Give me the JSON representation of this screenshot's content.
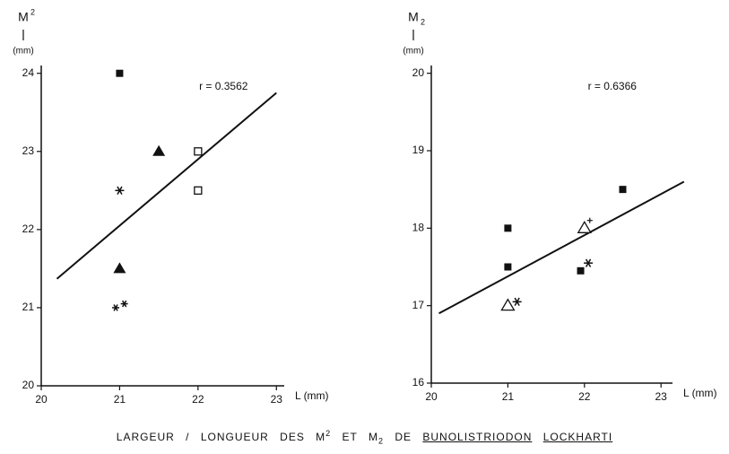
{
  "chart_data": [
    {
      "type": "scatter",
      "ylabel": "M",
      "ylabel_index": "2",
      "index_position": "superscript",
      "yunit": "(mm)",
      "xlabel": "L (mm)",
      "annotation": "r = 0.3562",
      "color": "#111111",
      "xlim": [
        20,
        23.1
      ],
      "ylim": [
        20,
        24.1
      ],
      "xticks": [
        20,
        21,
        22,
        23
      ],
      "yticks": [
        20,
        21,
        22,
        23,
        24
      ],
      "series": [
        {
          "marker": "square-filled",
          "x": [
            21
          ],
          "values": [
            24
          ]
        },
        {
          "marker": "triangle-filled",
          "x": [
            21.5,
            21
          ],
          "values": [
            23,
            21.5
          ]
        },
        {
          "marker": "square-open",
          "x": [
            22,
            22
          ],
          "values": [
            23,
            22.5
          ]
        },
        {
          "marker": "asterisk",
          "x": [
            21
          ],
          "values": [
            22.5
          ]
        },
        {
          "marker": "star-small",
          "x": [
            20.95,
            21.06
          ],
          "values": [
            21,
            21.05
          ]
        }
      ],
      "fit": {
        "x": [
          20.2,
          23
        ],
        "values": [
          21.37,
          23.75
        ]
      }
    },
    {
      "type": "scatter",
      "ylabel": "M",
      "ylabel_index": "2",
      "index_position": "subscript",
      "yunit": "(mm)",
      "xlabel": "L (mm)",
      "annotation": "r = 0.6366",
      "color": "#111111",
      "xlim": [
        20,
        23.15
      ],
      "ylim": [
        16,
        20.1
      ],
      "xticks": [
        20,
        21,
        22,
        23
      ],
      "yticks": [
        16,
        17,
        18,
        19,
        20
      ],
      "series": [
        {
          "marker": "square-filled",
          "x": [
            21,
            21,
            21.95,
            22.5
          ],
          "values": [
            18,
            17.5,
            17.45,
            18.5
          ]
        },
        {
          "marker": "triangle-open",
          "x": [
            21,
            22
          ],
          "values": [
            17,
            18
          ]
        },
        {
          "marker": "asterisk",
          "x": [
            21.12,
            22.05
          ],
          "values": [
            17.05,
            17.55
          ]
        },
        {
          "marker": "plus",
          "x": [
            22.07
          ],
          "values": [
            18.1
          ]
        }
      ],
      "fit": {
        "x": [
          20.1,
          23.3
        ],
        "values": [
          16.9,
          18.6
        ]
      }
    }
  ],
  "caption": {
    "text1": "LARGEUR / LONGUEUR DES M",
    "sup": "2",
    "text2": "ET M",
    "sub": "2",
    "text3": "DE",
    "genus": "BUNOLISTRIODON",
    "species": "LOCKHARTI"
  }
}
